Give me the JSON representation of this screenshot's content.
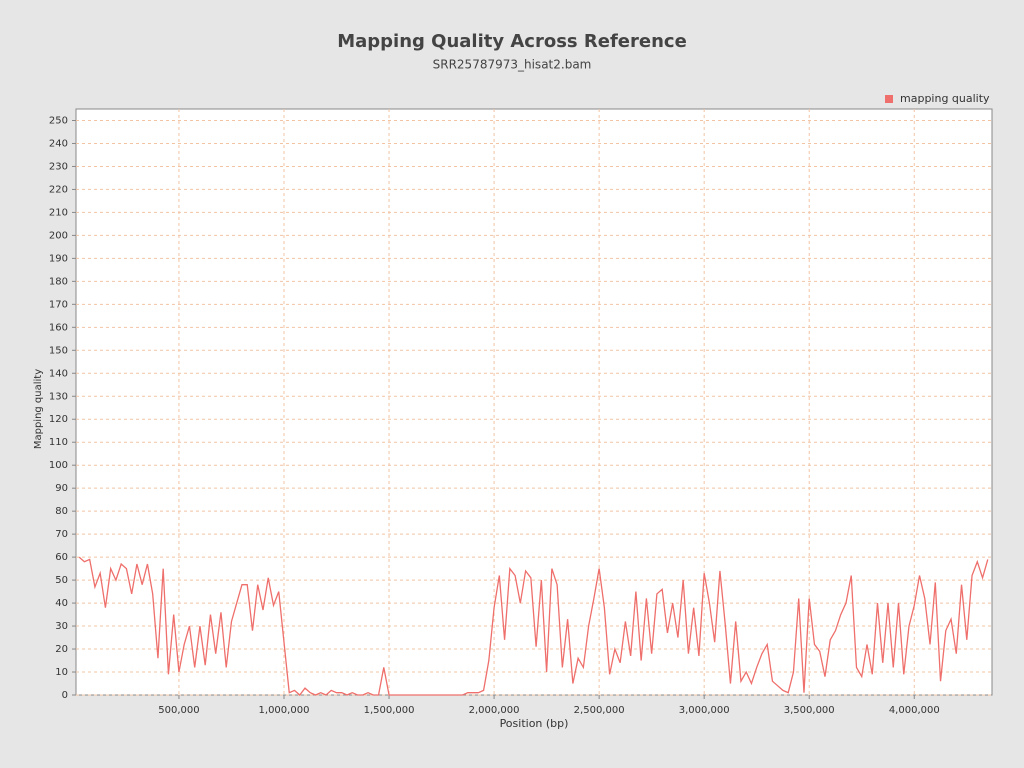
{
  "chart_data": {
    "type": "line",
    "title": "Mapping Quality Across Reference",
    "subtitle": "SRR25787973_hisat2.bam",
    "x_label": "Position (bp)",
    "y_label": "Mapping quality",
    "grid": true,
    "legend_position": "top-right",
    "xlim": [
      10000,
      4370000
    ],
    "ylim": [
      0,
      255
    ],
    "xticks": [
      {
        "value": 500000,
        "label": "500,000"
      },
      {
        "value": 1000000,
        "label": "1,000,000"
      },
      {
        "value": 1500000,
        "label": "1,500,000"
      },
      {
        "value": 2000000,
        "label": "2,000,000"
      },
      {
        "value": 2500000,
        "label": "2,500,000"
      },
      {
        "value": 3000000,
        "label": "3,000,000"
      },
      {
        "value": 3500000,
        "label": "3,500,000"
      },
      {
        "value": 4000000,
        "label": "4,000,000"
      }
    ],
    "yticks": [
      0,
      10,
      20,
      30,
      40,
      50,
      60,
      70,
      80,
      90,
      100,
      110,
      120,
      130,
      140,
      150,
      160,
      170,
      180,
      190,
      200,
      210,
      220,
      230,
      240,
      250
    ],
    "x": [
      25000,
      50000,
      75000,
      100000,
      125000,
      150000,
      175000,
      200000,
      225000,
      250000,
      275000,
      300000,
      325000,
      350000,
      375000,
      400000,
      425000,
      450000,
      475000,
      500000,
      525000,
      550000,
      575000,
      600000,
      625000,
      650000,
      675000,
      700000,
      725000,
      750000,
      775000,
      800000,
      825000,
      850000,
      875000,
      900000,
      925000,
      950000,
      975000,
      1000000,
      1025000,
      1050000,
      1075000,
      1100000,
      1125000,
      1150000,
      1175000,
      1200000,
      1225000,
      1250000,
      1275000,
      1300000,
      1325000,
      1350000,
      1375000,
      1400000,
      1425000,
      1450000,
      1475000,
      1500000,
      1525000,
      1550000,
      1575000,
      1600000,
      1625000,
      1650000,
      1675000,
      1700000,
      1725000,
      1750000,
      1775000,
      1800000,
      1825000,
      1850000,
      1875000,
      1900000,
      1925000,
      1950000,
      1975000,
      2000000,
      2025000,
      2050000,
      2075000,
      2100000,
      2125000,
      2150000,
      2175000,
      2200000,
      2225000,
      2250000,
      2275000,
      2300000,
      2325000,
      2350000,
      2375000,
      2400000,
      2425000,
      2450000,
      2475000,
      2500000,
      2525000,
      2550000,
      2575000,
      2600000,
      2625000,
      2650000,
      2675000,
      2700000,
      2725000,
      2750000,
      2775000,
      2800000,
      2825000,
      2850000,
      2875000,
      2900000,
      2925000,
      2950000,
      2975000,
      3000000,
      3025000,
      3050000,
      3075000,
      3100000,
      3125000,
      3150000,
      3175000,
      3200000,
      3225000,
      3250000,
      3275000,
      3300000,
      3325000,
      3350000,
      3375000,
      3400000,
      3425000,
      3450000,
      3475000,
      3500000,
      3525000,
      3550000,
      3575000,
      3600000,
      3625000,
      3650000,
      3675000,
      3700000,
      3725000,
      3750000,
      3775000,
      3800000,
      3825000,
      3850000,
      3875000,
      3900000,
      3925000,
      3950000,
      3975000,
      4000000,
      4025000,
      4050000,
      4075000,
      4100000,
      4125000,
      4150000,
      4175000,
      4200000,
      4225000,
      4250000,
      4275000,
      4300000,
      4325000,
      4350000
    ],
    "series": [
      {
        "name": "mapping quality",
        "color": "#ee6f6b",
        "values": [
          60,
          58,
          59,
          47,
          53,
          38,
          55,
          50,
          57,
          55,
          44,
          57,
          48,
          57,
          44,
          16,
          55,
          9,
          35,
          10,
          22,
          30,
          12,
          30,
          13,
          35,
          18,
          36,
          12,
          32,
          40,
          48,
          48,
          28,
          48,
          37,
          51,
          39,
          45,
          23,
          1,
          2,
          0,
          3,
          1,
          0,
          1,
          0,
          2,
          1,
          1,
          0,
          1,
          0,
          0,
          1,
          0,
          0,
          12,
          0,
          0,
          0,
          0,
          0,
          0,
          0,
          0,
          0,
          0,
          0,
          0,
          0,
          0,
          0,
          1,
          1,
          1,
          2,
          15,
          38,
          52,
          24,
          55,
          52,
          40,
          54,
          51,
          21,
          50,
          10,
          55,
          48,
          12,
          33,
          5,
          16,
          12,
          30,
          42,
          55,
          38,
          9,
          20,
          14,
          32,
          17,
          45,
          15,
          42,
          18,
          44,
          46,
          27,
          40,
          25,
          50,
          18,
          38,
          17,
          53,
          40,
          23,
          54,
          31,
          5,
          32,
          6,
          10,
          5,
          12,
          18,
          22,
          6,
          4,
          2,
          1,
          10,
          42,
          1,
          42,
          22,
          19,
          8,
          24,
          28,
          35,
          40,
          52,
          12,
          8,
          22,
          9,
          40,
          14,
          40,
          12,
          40,
          9,
          30,
          39,
          52,
          42,
          22,
          49,
          6,
          28,
          33,
          18,
          48,
          24,
          52,
          58,
          51,
          59
        ]
      }
    ]
  }
}
